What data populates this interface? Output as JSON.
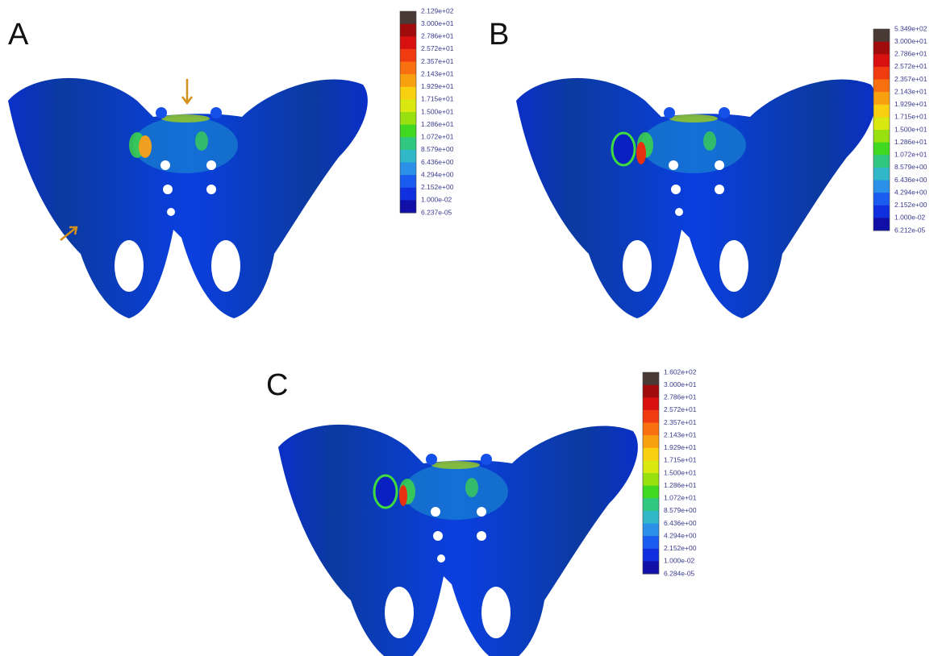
{
  "panels": [
    {
      "label": "A",
      "legend": [
        "2.129e+02",
        "3.000e+01",
        "2.786e+01",
        "2.572e+01",
        "2.357e+01",
        "2.143e+01",
        "1.929e+01",
        "1.715e+01",
        "1.500e+01",
        "1.286e+01",
        "1.072e+01",
        "8.579e+00",
        "6.436e+00",
        "4.294e+00",
        "2.152e+00",
        "1.000e-02",
        "6.237e-05"
      ]
    },
    {
      "label": "B",
      "legend": [
        "5.349e+02",
        "3.000e+01",
        "2.786e+01",
        "2.572e+01",
        "2.357e+01",
        "2.143e+01",
        "1.929e+01",
        "1.715e+01",
        "1.500e+01",
        "1.286e+01",
        "1.072e+01",
        "8.579e+00",
        "6.436e+00",
        "4.294e+00",
        "2.152e+00",
        "1.000e-02",
        "6.212e-05"
      ]
    },
    {
      "label": "C",
      "legend": [
        "1.602e+02",
        "3.000e+01",
        "2.786e+01",
        "2.572e+01",
        "2.357e+01",
        "2.143e+01",
        "1.929e+01",
        "1.715e+01",
        "1.500e+01",
        "1.286e+01",
        "1.072e+01",
        "8.579e+00",
        "6.436e+00",
        "4.294e+00",
        "2.152e+00",
        "1.000e-02",
        "6.284e-05"
      ]
    }
  ]
}
